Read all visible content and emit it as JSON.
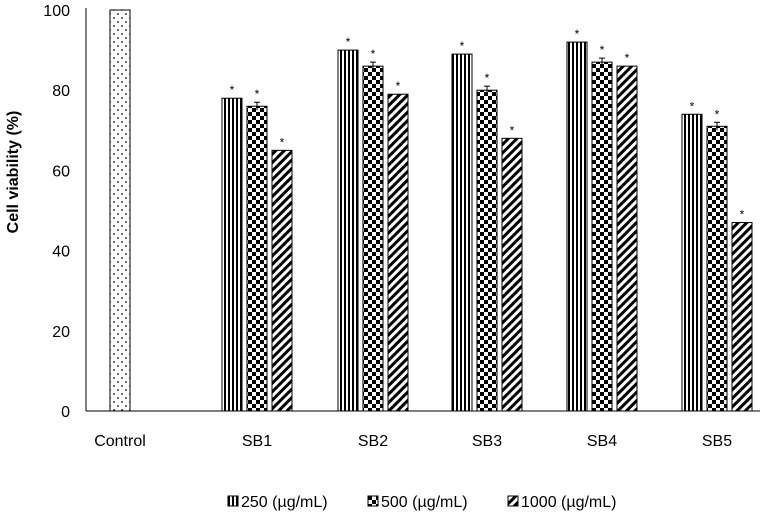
{
  "chart_data": {
    "type": "bar",
    "title": "",
    "xlabel": "",
    "ylabel": "Cell viability (%)",
    "ylim": [
      0,
      100
    ],
    "yticks": [
      0,
      20,
      40,
      60,
      80,
      100
    ],
    "categories": [
      "Control",
      "SB1",
      "SB2",
      "SB3",
      "SB4",
      "SB5"
    ],
    "control": {
      "value": 100,
      "pattern": "dots"
    },
    "series": [
      {
        "name": "250 (µg/mL)",
        "pattern": "vertical-lines",
        "values": [
          null,
          78,
          90,
          89,
          92,
          74
        ],
        "errors": [
          null,
          0,
          0,
          0,
          0,
          0
        ]
      },
      {
        "name": "500 (µg/mL)",
        "pattern": "checker",
        "values": [
          null,
          76,
          86,
          80,
          87,
          71
        ],
        "errors": [
          null,
          1,
          1,
          1,
          1,
          1
        ]
      },
      {
        "name": "1000 (µg/mL)",
        "pattern": "diagonal",
        "values": [
          null,
          65,
          79,
          68,
          86,
          47
        ],
        "errors": [
          null,
          0,
          0,
          0,
          0,
          0
        ]
      }
    ],
    "significance_marker": "*",
    "legend_position": "bottom",
    "grid": false
  }
}
